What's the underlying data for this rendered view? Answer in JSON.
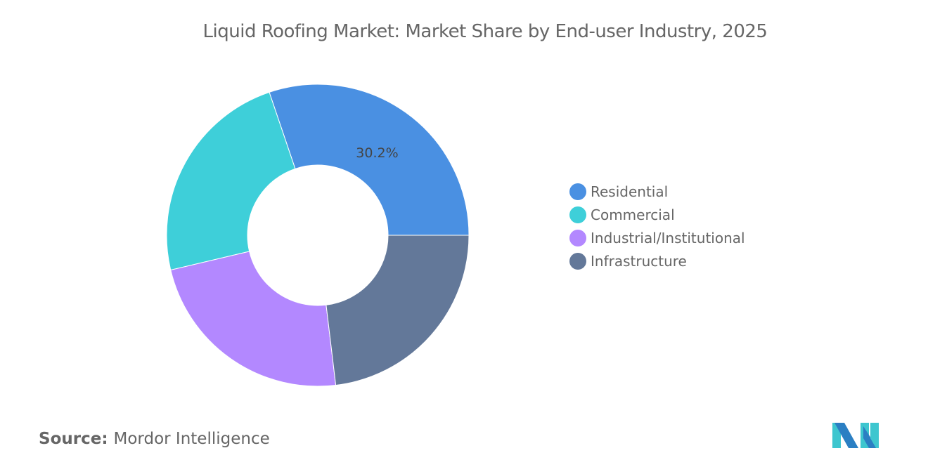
{
  "chart_data": {
    "type": "pie",
    "variant": "donut",
    "title": "Liquid Roofing Market: Market Share by End-user Industry, 2025",
    "categories": [
      "Residential",
      "Commercial",
      "Industrial/Institutional",
      "Infrastructure"
    ],
    "values": [
      30.2,
      23.5,
      23.2,
      23.1
    ],
    "unit": "%",
    "colors": [
      "#4a90e2",
      "#3ecfd9",
      "#b388ff",
      "#637899"
    ],
    "data_labels": [
      "30.2%",
      "",
      "",
      ""
    ],
    "legend_position": "right"
  },
  "source": {
    "label": "Source:",
    "value": "Mordor Intelligence"
  },
  "logo": "mordor-intelligence-logo"
}
